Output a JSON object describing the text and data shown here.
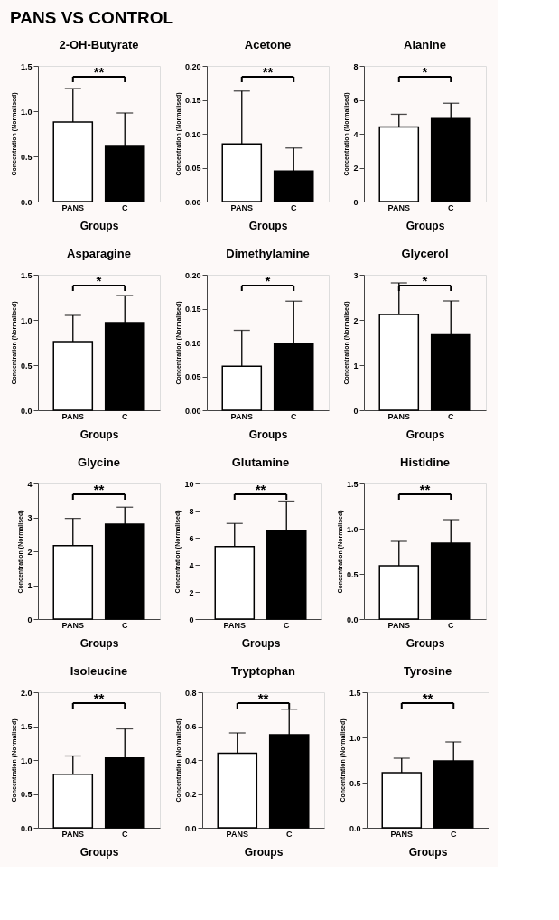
{
  "chart_data": [
    {
      "type": "other",
      "title": "PANS VS CONTROL"
    },
    {
      "type": "bar",
      "title": "2-OH-Butyrate",
      "xlabel": "Groups",
      "ylabel": "Concentration (Normalised)",
      "categories": [
        "PANS",
        "C"
      ],
      "values": [
        0.88,
        0.62
      ],
      "errors": [
        [
          0.88,
          1.25
        ],
        [
          0.62,
          0.98
        ]
      ],
      "colors": [
        "#ffffff",
        "#000000"
      ],
      "ylim": [
        0,
        1.5
      ],
      "yticks": [
        {
          "value": 0,
          "label": "0.0"
        },
        0.5,
        {
          "value": 1,
          "label": "1.0"
        },
        1.5
      ],
      "annotations": [
        "**"
      ],
      "grid": false,
      "legend": false
    },
    {
      "type": "bar",
      "title": "Acetone",
      "xlabel": "Groups",
      "ylabel": "Concentration (Normalised)",
      "categories": [
        "PANS",
        "C"
      ],
      "values": [
        0.085,
        0.045
      ],
      "errors": [
        [
          0.085,
          0.163
        ],
        [
          0.045,
          0.079
        ]
      ],
      "colors": [
        "#ffffff",
        "#000000"
      ],
      "ylim": [
        0,
        0.2
      ],
      "yticks": [
        {
          "value": 0,
          "label": "0.00"
        },
        0.05,
        {
          "value": 0.1,
          "label": "0.10"
        },
        0.15,
        {
          "value": 0.2,
          "label": "0.20"
        }
      ],
      "annotations": [
        "**"
      ],
      "grid": false,
      "legend": false
    },
    {
      "type": "bar",
      "title": "Alanine",
      "xlabel": "Groups",
      "ylabel": "Concentration (Normalised)",
      "categories": [
        "PANS",
        "C"
      ],
      "values": [
        4.4,
        4.9
      ],
      "errors": [
        [
          4.4,
          5.15
        ],
        [
          4.9,
          5.8
        ]
      ],
      "colors": [
        "#ffffff",
        "#000000"
      ],
      "ylim": [
        0,
        8
      ],
      "yticks": [
        0,
        2,
        4,
        6,
        8
      ],
      "annotations": [
        "*"
      ],
      "grid": false,
      "legend": false
    },
    {
      "type": "bar",
      "title": "Asparagine",
      "xlabel": "Groups",
      "ylabel": "Concentration (Normalised)",
      "categories": [
        "PANS",
        "C"
      ],
      "values": [
        0.76,
        0.97
      ],
      "errors": [
        [
          0.76,
          1.05
        ],
        [
          0.97,
          1.27
        ]
      ],
      "colors": [
        "#ffffff",
        "#000000"
      ],
      "ylim": [
        0,
        1.5
      ],
      "yticks": [
        {
          "value": 0,
          "label": "0.0"
        },
        0.5,
        {
          "value": 1,
          "label": "1.0"
        },
        1.5
      ],
      "annotations": [
        "*"
      ],
      "grid": false,
      "legend": false
    },
    {
      "type": "bar",
      "title": "Dimethylamine",
      "xlabel": "Groups",
      "ylabel": "Concentration (Normalised)",
      "categories": [
        "PANS",
        "C"
      ],
      "values": [
        0.065,
        0.098
      ],
      "errors": [
        [
          0.065,
          0.118
        ],
        [
          0.098,
          0.161
        ]
      ],
      "colors": [
        "#ffffff",
        "#000000"
      ],
      "ylim": [
        0,
        0.2
      ],
      "yticks": [
        {
          "value": 0,
          "label": "0.00"
        },
        0.05,
        {
          "value": 0.1,
          "label": "0.10"
        },
        0.15,
        {
          "value": 0.2,
          "label": "0.20"
        }
      ],
      "annotations": [
        "*"
      ],
      "grid": false,
      "legend": false
    },
    {
      "type": "bar",
      "title": "Glycerol",
      "xlabel": "Groups",
      "ylabel": "Concentration (Normalised)",
      "categories": [
        "PANS",
        "C"
      ],
      "values": [
        2.12,
        1.67
      ],
      "errors": [
        [
          2.12,
          2.82
        ],
        [
          1.67,
          2.42
        ]
      ],
      "colors": [
        "#ffffff",
        "#000000"
      ],
      "ylim": [
        0,
        3
      ],
      "yticks": [
        0,
        1,
        2,
        3
      ],
      "annotations": [
        "*"
      ],
      "grid": false,
      "legend": false
    },
    {
      "type": "bar",
      "title": "Glycine",
      "xlabel": "Groups",
      "ylabel": "Concentration (Normalised)",
      "categories": [
        "PANS",
        "C"
      ],
      "values": [
        2.17,
        2.8
      ],
      "errors": [
        [
          2.17,
          2.97
        ],
        [
          2.8,
          3.3
        ]
      ],
      "colors": [
        "#ffffff",
        "#000000"
      ],
      "ylim": [
        0,
        4
      ],
      "yticks": [
        0,
        1,
        2,
        3,
        4
      ],
      "annotations": [
        "**"
      ],
      "grid": false,
      "legend": false
    },
    {
      "type": "bar",
      "title": "Glutamine",
      "xlabel": "Groups",
      "ylabel": "Concentration (Normalised)",
      "categories": [
        "PANS",
        "C"
      ],
      "values": [
        5.35,
        6.55
      ],
      "errors": [
        [
          5.35,
          7.05
        ],
        [
          6.55,
          8.7
        ]
      ],
      "colors": [
        "#ffffff",
        "#000000"
      ],
      "ylim": [
        0,
        10
      ],
      "yticks": [
        0,
        2,
        4,
        6,
        8,
        10
      ],
      "annotations": [
        "**"
      ],
      "grid": false,
      "legend": false
    },
    {
      "type": "bar",
      "title": "Histidine",
      "xlabel": "Groups",
      "ylabel": "Concentration (Normalised)",
      "categories": [
        "PANS",
        "C"
      ],
      "values": [
        0.59,
        0.84
      ],
      "errors": [
        [
          0.59,
          0.86
        ],
        [
          0.84,
          1.1
        ]
      ],
      "colors": [
        "#ffffff",
        "#000000"
      ],
      "ylim": [
        0,
        1.5
      ],
      "yticks": [
        {
          "value": 0,
          "label": "0.0"
        },
        0.5,
        {
          "value": 1,
          "label": "1.0"
        },
        1.5
      ],
      "annotations": [
        "**"
      ],
      "grid": false,
      "legend": false
    },
    {
      "type": "bar",
      "title": "Isoleucine",
      "xlabel": "Groups",
      "ylabel": "Concentration (Normalised)",
      "categories": [
        "PANS",
        "C"
      ],
      "values": [
        0.79,
        1.03
      ],
      "errors": [
        [
          0.79,
          1.06
        ],
        [
          1.03,
          1.46
        ]
      ],
      "colors": [
        "#ffffff",
        "#000000"
      ],
      "ylim": [
        0,
        2
      ],
      "yticks": [
        {
          "value": 0,
          "label": "0.0"
        },
        0.5,
        {
          "value": 1,
          "label": "1.0"
        },
        1.5,
        {
          "value": 2,
          "label": "2.0"
        }
      ],
      "annotations": [
        "**"
      ],
      "grid": false,
      "legend": false
    },
    {
      "type": "bar",
      "title": "Tryptophan",
      "xlabel": "Groups",
      "ylabel": "Concentration (Normalised)",
      "categories": [
        "PANS",
        "C"
      ],
      "values": [
        0.44,
        0.55
      ],
      "errors": [
        [
          0.44,
          0.56
        ],
        [
          0.55,
          0.7
        ]
      ],
      "colors": [
        "#ffffff",
        "#000000"
      ],
      "ylim": [
        0,
        0.8
      ],
      "yticks": [
        {
          "value": 0,
          "label": "0.0"
        },
        0.2,
        0.4,
        0.6,
        0.8
      ],
      "annotations": [
        "**"
      ],
      "grid": false,
      "legend": false
    },
    {
      "type": "bar",
      "title": "Tyrosine",
      "xlabel": "Groups",
      "ylabel": "Concentration (Normalised)",
      "categories": [
        "PANS",
        "C"
      ],
      "values": [
        0.61,
        0.74
      ],
      "errors": [
        [
          0.61,
          0.77
        ],
        [
          0.74,
          0.95
        ]
      ],
      "colors": [
        "#ffffff",
        "#000000"
      ],
      "ylim": [
        0,
        1.5
      ],
      "yticks": [
        {
          "value": 0,
          "label": "0.0"
        },
        0.5,
        {
          "value": 1,
          "label": "1.0"
        },
        1.5
      ],
      "annotations": [
        "**"
      ],
      "grid": false,
      "legend": false
    }
  ]
}
